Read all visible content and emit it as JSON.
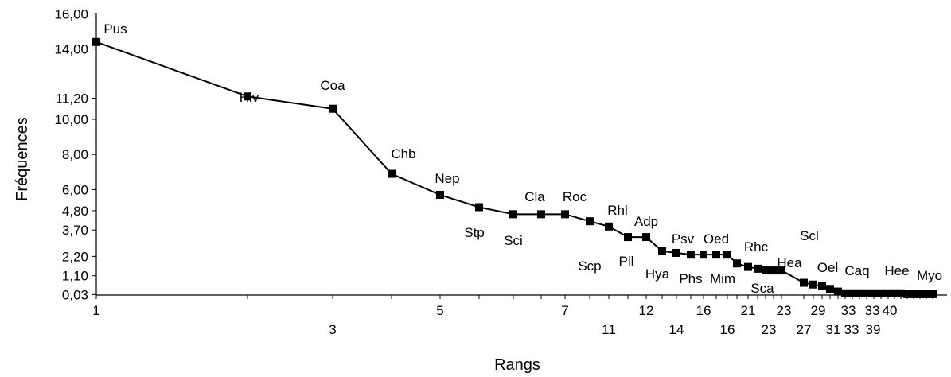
{
  "chart_data": {
    "type": "line",
    "title": "",
    "xlabel": "Rangs",
    "ylabel": "Fréquences",
    "ylim": [
      0,
      16
    ],
    "grid": false,
    "legend": "none",
    "line_color": "#000000",
    "marker": "filled-cross-square",
    "y_ticks": [
      "16,00",
      "14,00",
      "11,20",
      "10,00",
      "8,00",
      "6,00",
      "4,80",
      "3,70",
      "2,20",
      "1,10",
      "0,03"
    ],
    "y_tick_values": [
      16,
      14,
      11.2,
      10,
      8,
      6,
      4.8,
      3.7,
      2.2,
      1.1,
      0.03
    ],
    "x_tick_labels": [
      "1",
      "3",
      "5",
      "7",
      "11",
      "12",
      "14",
      "16",
      "16",
      "21",
      "23",
      "23",
      "27",
      "29",
      "31",
      "33",
      "33",
      "33",
      "39",
      "40"
    ],
    "points": [
      {
        "y": 14.4,
        "label": "Pus"
      },
      {
        "y": 11.3,
        "label": "Hiv"
      },
      {
        "y": 10.6,
        "label": "Coa"
      },
      {
        "y": 6.9,
        "label": "Chb"
      },
      {
        "y": 5.7,
        "label": "Nep"
      },
      {
        "y": 5.0,
        "label": "Stp"
      },
      {
        "y": 4.6,
        "label": "Sci"
      },
      {
        "y": 4.6,
        "label": "Cla"
      },
      {
        "y": 4.6,
        "label": "Roc"
      },
      {
        "y": 4.2,
        "label": "Scp"
      },
      {
        "y": 3.9,
        "label": "Rhl"
      },
      {
        "y": 3.3,
        "label": "Pll"
      },
      {
        "y": 3.3,
        "label": "Adp"
      },
      {
        "y": 2.5,
        "label": "Hya"
      },
      {
        "y": 2.4,
        "label": "Psv"
      },
      {
        "y": 2.3,
        "label": "Phs"
      },
      {
        "y": 2.3,
        "label": "Oed"
      },
      {
        "y": 2.3,
        "label": "Mim"
      },
      {
        "y": 2.3,
        "label": ""
      },
      {
        "y": 1.8,
        "label": "Rhc"
      },
      {
        "y": 1.6,
        "label": "Sca"
      },
      {
        "y": 1.5,
        "label": ""
      },
      {
        "y": 1.4,
        "label": "Hea"
      },
      {
        "y": 1.4,
        "label": ""
      },
      {
        "y": 1.4,
        "label": ""
      },
      {
        "y": 0.7,
        "label": "Scl"
      },
      {
        "y": 0.6,
        "label": ""
      },
      {
        "y": 0.5,
        "label": ""
      },
      {
        "y": 0.35,
        "label": "Oel"
      },
      {
        "y": 0.2,
        "label": ""
      },
      {
        "y": 0.1,
        "label": ""
      },
      {
        "y": 0.1,
        "label": "Caq"
      },
      {
        "y": 0.1,
        "label": ""
      },
      {
        "y": 0.1,
        "label": ""
      },
      {
        "y": 0.1,
        "label": ""
      },
      {
        "y": 0.1,
        "label": "Hee"
      },
      {
        "y": 0.1,
        "label": ""
      },
      {
        "y": 0.1,
        "label": ""
      },
      {
        "y": 0.1,
        "label": ""
      },
      {
        "y": 0.05,
        "label": "Myo"
      },
      {
        "y": 0.05,
        "label": ""
      },
      {
        "y": 0.05,
        "label": ""
      },
      {
        "y": 0.05,
        "label": ""
      },
      {
        "y": 0.05,
        "label": ""
      }
    ]
  }
}
